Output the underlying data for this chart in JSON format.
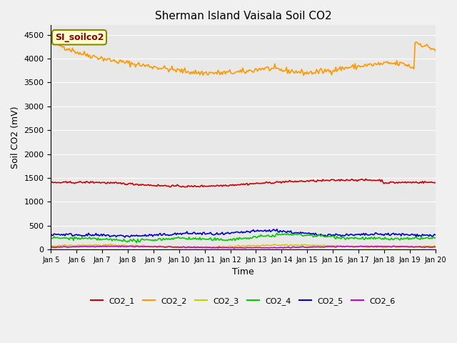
{
  "title": "Sherman Island Vaisala Soil CO2",
  "xlabel": "Time",
  "ylabel": "Soil CO2 (mV)",
  "ylim": [
    0,
    4700
  ],
  "yticks": [
    0,
    500,
    1000,
    1500,
    2000,
    2500,
    3000,
    3500,
    4000,
    4500
  ],
  "annotation_text": "SI_soilco2",
  "bg_color": "#e8e8e8",
  "line_colors": {
    "CO2_1": "#cc0000",
    "CO2_2": "#ff9900",
    "CO2_3": "#cccc00",
    "CO2_4": "#00cc00",
    "CO2_5": "#0000cc",
    "CO2_6": "#cc00cc"
  },
  "num_points": 360,
  "x_start": 5,
  "x_end": 20,
  "x_tick_positions": [
    5,
    6,
    7,
    8,
    9,
    10,
    11,
    12,
    13,
    14,
    15,
    16,
    17,
    18,
    19,
    20
  ],
  "x_tick_labels": [
    "Jan 5",
    "Jan 6",
    "Jan 7",
    "Jan 8",
    "Jan 9",
    "Jan 10",
    "Jan 11",
    "Jan 12",
    "Jan 13",
    "Jan 14",
    "Jan 15",
    "Jan 16",
    "Jan 17",
    "Jan 18",
    "Jan 19",
    "Jan 20"
  ]
}
